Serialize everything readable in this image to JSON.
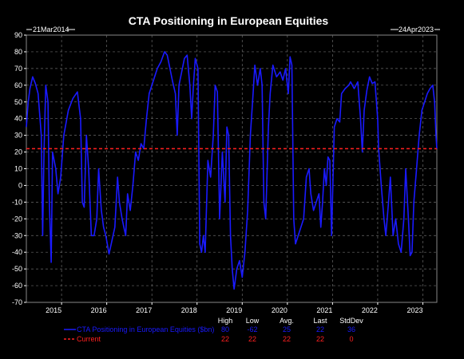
{
  "chart_data": {
    "type": "line",
    "title": "CTA Positioning in European Equities",
    "start_label": "21Mar2014",
    "end_label": "24Apr2023",
    "ylim": [
      -70,
      90
    ],
    "yticks": [
      -70,
      -60,
      -50,
      -40,
      -30,
      -20,
      -10,
      0,
      10,
      20,
      30,
      40,
      50,
      60,
      70,
      80,
      90
    ],
    "xlim": [
      2014.22,
      2023.31
    ],
    "xticks": [
      {
        "label": "2015",
        "value": 2015.0
      },
      {
        "label": "2016",
        "value": 2016.0
      },
      {
        "label": "2017",
        "value": 2017.0
      },
      {
        "label": "2018",
        "value": 2018.0
      },
      {
        "label": "2019",
        "value": 2019.0
      },
      {
        "label": "2020",
        "value": 2020.0
      },
      {
        "label": "2021",
        "value": 2021.0
      },
      {
        "label": "2022",
        "value": 2022.0
      },
      {
        "label": "2023",
        "value": 2023.0
      }
    ],
    "grid": true,
    "series": [
      {
        "name": "CTA Positioning in European Equities ($bn)",
        "color": "#1a1aff",
        "style": "solid",
        "points": [
          [
            2014.22,
            35
          ],
          [
            2014.26,
            50
          ],
          [
            2014.3,
            58
          ],
          [
            2014.36,
            65
          ],
          [
            2014.42,
            61
          ],
          [
            2014.48,
            55
          ],
          [
            2014.55,
            30
          ],
          [
            2014.58,
            -30
          ],
          [
            2014.61,
            20
          ],
          [
            2014.65,
            60
          ],
          [
            2014.7,
            50
          ],
          [
            2014.73,
            -10
          ],
          [
            2014.77,
            -46
          ],
          [
            2014.8,
            20
          ],
          [
            2014.87,
            10
          ],
          [
            2014.92,
            -5
          ],
          [
            2014.98,
            5
          ],
          [
            2015.05,
            30
          ],
          [
            2015.15,
            45
          ],
          [
            2015.25,
            52
          ],
          [
            2015.35,
            56
          ],
          [
            2015.42,
            40
          ],
          [
            2015.46,
            -10
          ],
          [
            2015.5,
            -13
          ],
          [
            2015.55,
            30
          ],
          [
            2015.6,
            10
          ],
          [
            2015.66,
            -30
          ],
          [
            2015.72,
            -30
          ],
          [
            2015.78,
            -20
          ],
          [
            2015.82,
            10
          ],
          [
            2015.88,
            -15
          ],
          [
            2015.93,
            -25
          ],
          [
            2015.98,
            -30
          ],
          [
            2016.05,
            -41
          ],
          [
            2016.1,
            -35
          ],
          [
            2016.18,
            -25
          ],
          [
            2016.24,
            5
          ],
          [
            2016.28,
            -10
          ],
          [
            2016.34,
            -20
          ],
          [
            2016.38,
            -25
          ],
          [
            2016.42,
            -30
          ],
          [
            2016.46,
            -5
          ],
          [
            2016.52,
            -15
          ],
          [
            2016.58,
            0
          ],
          [
            2016.64,
            20
          ],
          [
            2016.7,
            15
          ],
          [
            2016.76,
            25
          ],
          [
            2016.82,
            22
          ],
          [
            2016.88,
            40
          ],
          [
            2016.94,
            55
          ],
          [
            2017.0,
            60
          ],
          [
            2017.06,
            65
          ],
          [
            2017.12,
            70
          ],
          [
            2017.2,
            74
          ],
          [
            2017.28,
            80
          ],
          [
            2017.34,
            78
          ],
          [
            2017.4,
            70
          ],
          [
            2017.46,
            62
          ],
          [
            2017.52,
            55
          ],
          [
            2017.56,
            30
          ],
          [
            2017.6,
            60
          ],
          [
            2017.66,
            68
          ],
          [
            2017.72,
            76
          ],
          [
            2017.78,
            78
          ],
          [
            2017.84,
            60
          ],
          [
            2017.88,
            40
          ],
          [
            2017.92,
            60
          ],
          [
            2017.96,
            76
          ],
          [
            2018.02,
            70
          ],
          [
            2018.06,
            -35
          ],
          [
            2018.1,
            -40
          ],
          [
            2018.14,
            -30
          ],
          [
            2018.18,
            -40
          ],
          [
            2018.24,
            15
          ],
          [
            2018.3,
            5
          ],
          [
            2018.36,
            30
          ],
          [
            2018.4,
            60
          ],
          [
            2018.45,
            56
          ],
          [
            2018.5,
            -20
          ],
          [
            2018.56,
            20
          ],
          [
            2018.62,
            -10
          ],
          [
            2018.66,
            35
          ],
          [
            2018.7,
            30
          ],
          [
            2018.74,
            -30
          ],
          [
            2018.78,
            -50
          ],
          [
            2018.82,
            -62
          ],
          [
            2018.88,
            -50
          ],
          [
            2018.94,
            -45
          ],
          [
            2019.0,
            -55
          ],
          [
            2019.06,
            -40
          ],
          [
            2019.12,
            -15
          ],
          [
            2019.18,
            30
          ],
          [
            2019.24,
            55
          ],
          [
            2019.28,
            72
          ],
          [
            2019.34,
            60
          ],
          [
            2019.4,
            70
          ],
          [
            2019.44,
            60
          ],
          [
            2019.48,
            -10
          ],
          [
            2019.52,
            -20
          ],
          [
            2019.58,
            35
          ],
          [
            2019.62,
            55
          ],
          [
            2019.68,
            72
          ],
          [
            2019.76,
            65
          ],
          [
            2019.84,
            68
          ],
          [
            2019.9,
            63
          ],
          [
            2019.96,
            70
          ],
          [
            2020.02,
            55
          ],
          [
            2020.06,
            77
          ],
          [
            2020.1,
            72
          ],
          [
            2020.14,
            -20
          ],
          [
            2020.18,
            -35
          ],
          [
            2020.24,
            -30
          ],
          [
            2020.3,
            -25
          ],
          [
            2020.36,
            -20
          ],
          [
            2020.42,
            5
          ],
          [
            2020.48,
            10
          ],
          [
            2020.52,
            -5
          ],
          [
            2020.58,
            -15
          ],
          [
            2020.64,
            -10
          ],
          [
            2020.7,
            -5
          ],
          [
            2020.74,
            -25
          ],
          [
            2020.78,
            -10
          ],
          [
            2020.82,
            10
          ],
          [
            2020.86,
            0
          ],
          [
            2020.9,
            17
          ],
          [
            2020.94,
            15
          ],
          [
            2020.98,
            -30
          ],
          [
            2021.04,
            35
          ],
          [
            2021.1,
            40
          ],
          [
            2021.16,
            38
          ],
          [
            2021.2,
            55
          ],
          [
            2021.28,
            58
          ],
          [
            2021.36,
            60
          ],
          [
            2021.4,
            62
          ],
          [
            2021.48,
            58
          ],
          [
            2021.56,
            62
          ],
          [
            2021.62,
            40
          ],
          [
            2021.66,
            20
          ],
          [
            2021.7,
            45
          ],
          [
            2021.76,
            57
          ],
          [
            2021.82,
            65
          ],
          [
            2021.88,
            61
          ],
          [
            2021.94,
            62
          ],
          [
            2022.0,
            40
          ],
          [
            2022.02,
            22
          ],
          [
            2022.08,
            0
          ],
          [
            2022.14,
            -20
          ],
          [
            2022.18,
            -30
          ],
          [
            2022.24,
            -10
          ],
          [
            2022.28,
            5
          ],
          [
            2022.34,
            -30
          ],
          [
            2022.4,
            -20
          ],
          [
            2022.46,
            -35
          ],
          [
            2022.52,
            -40
          ],
          [
            2022.58,
            -20
          ],
          [
            2022.62,
            10
          ],
          [
            2022.68,
            -20
          ],
          [
            2022.72,
            -42
          ],
          [
            2022.76,
            -40
          ],
          [
            2022.8,
            -10
          ],
          [
            2022.86,
            10
          ],
          [
            2022.92,
            30
          ],
          [
            2022.98,
            45
          ],
          [
            2023.04,
            50
          ],
          [
            2023.1,
            55
          ],
          [
            2023.16,
            58
          ],
          [
            2023.22,
            60
          ],
          [
            2023.26,
            50
          ],
          [
            2023.29,
            30
          ],
          [
            2023.31,
            22
          ]
        ]
      },
      {
        "name": "Current",
        "color": "#ff2020",
        "style": "dashed",
        "value": 22
      }
    ],
    "stats": {
      "headers": [
        "High",
        "Low",
        "Avg.",
        "Last",
        "StdDev"
      ],
      "rows": [
        {
          "label": "CTA Positioning in European Equities ($bn)",
          "values": [
            "80",
            "-62",
            "25",
            "22",
            "36"
          ]
        },
        {
          "label": "Current",
          "values": [
            "22",
            "22",
            "22",
            "22",
            "0"
          ]
        }
      ]
    }
  }
}
